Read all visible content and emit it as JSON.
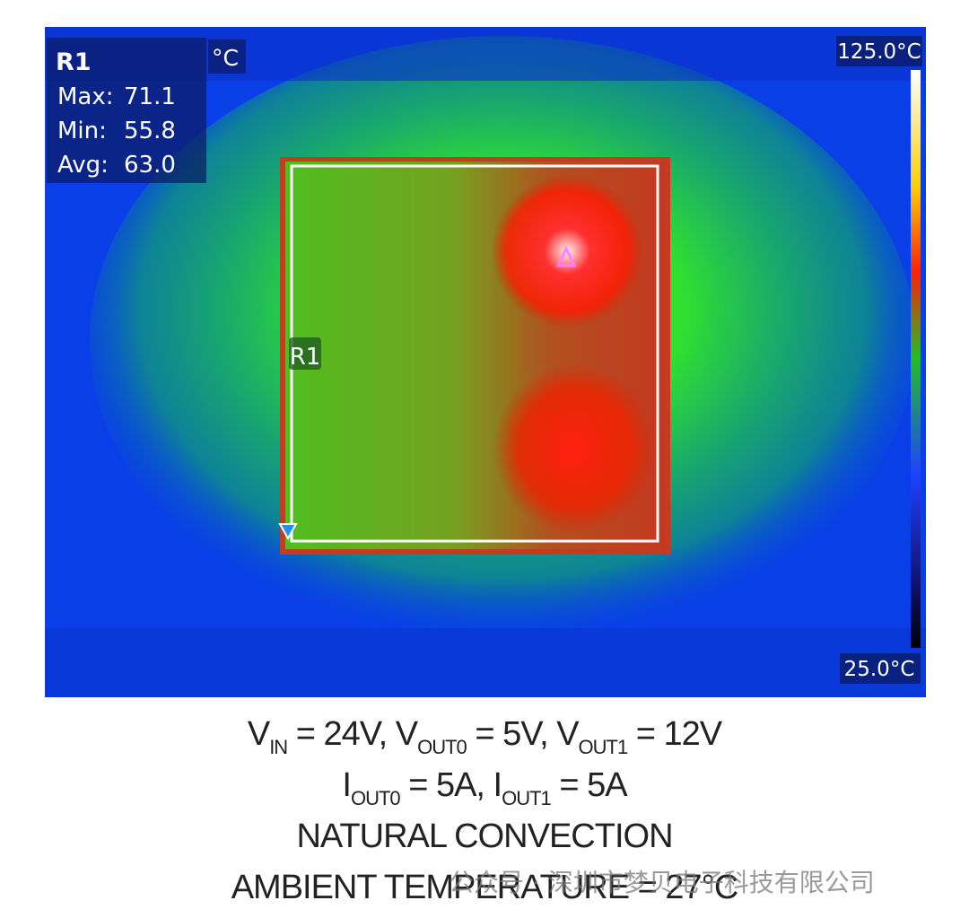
{
  "overlay": {
    "region": "R1",
    "unit": "°C",
    "stats": [
      {
        "label": "Max:",
        "value": "71.1"
      },
      {
        "label": "Min:",
        "value": "55.8"
      },
      {
        "label": "Avg:",
        "value": "63.0"
      }
    ],
    "scale_max": "125.0°C",
    "scale_min": "25.0°C",
    "box_label": "R1"
  },
  "caption": [
    [
      {
        "text": "V"
      },
      {
        "sub": "IN"
      },
      {
        "text": " = 24V, V"
      },
      {
        "sub": "OUT0"
      },
      {
        "text": " = 5V, V"
      },
      {
        "sub": "OUT1"
      },
      {
        "text": " = 12V"
      }
    ],
    [
      {
        "text": "I"
      },
      {
        "sub": "OUT0"
      },
      {
        "text": " = 5A, I"
      },
      {
        "sub": "OUT1"
      },
      {
        "text": " = 5A"
      }
    ],
    [
      {
        "text": "NATURAL CONVECTION"
      }
    ],
    [
      {
        "text": "AMBIENT TEMPERATURE = 27°C"
      }
    ]
  ],
  "watermark": "公众号 · 深圳市梦贝电子科技有限公司"
}
